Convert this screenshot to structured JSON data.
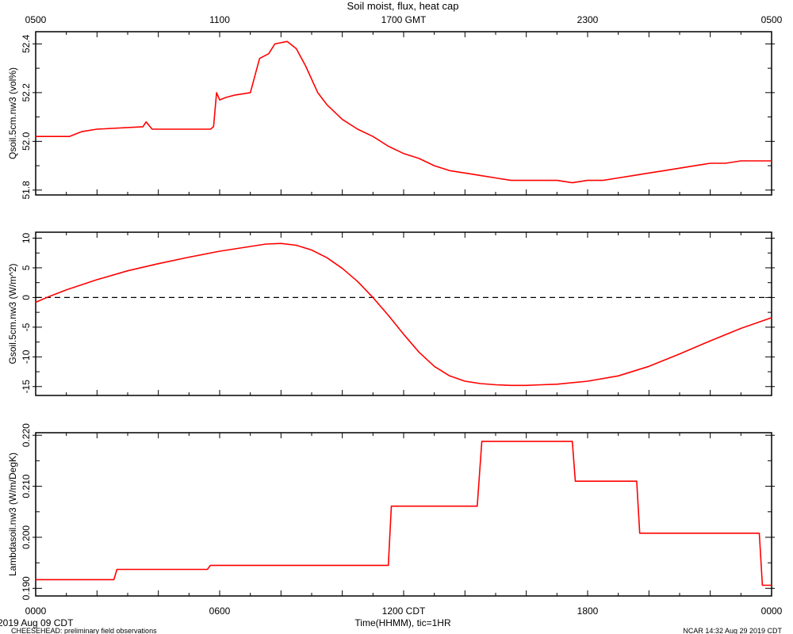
{
  "title": "Soil moist, flux, heat cap",
  "top_axis_ticks": [
    "0500",
    "1100",
    "1700 GMT",
    "2300",
    "0500"
  ],
  "bottom_axis_ticks": [
    "0000",
    "0600",
    "1200 CDT",
    "1800",
    "0000"
  ],
  "xlabel": "Time(HHMM), tic=1HR",
  "start_date": "2019 Aug 09 CDT",
  "footer_left": "CHEESEHEAD: preliminary field observations",
  "footer_right": "NCAR 14:32 Aug 29 2019 CDT",
  "line_color": "#ff0000",
  "chart_data": [
    {
      "type": "line",
      "ylabel": "Qsoil.5cm.nw3 (vol%)",
      "ylim": [
        51.78,
        52.45
      ],
      "yticks": [
        51.8,
        52.0,
        52.2,
        52.4
      ],
      "yticklabels": [
        "51.8",
        "52.0",
        "52.2",
        "52.4"
      ],
      "zero_line": false,
      "x_hours": [
        0,
        1.1,
        1.3,
        1.5,
        2.0,
        3.5,
        3.6,
        3.8,
        5.7,
        5.8,
        5.9,
        6.0,
        6.2,
        6.5,
        7.0,
        7.3,
        7.6,
        7.8,
        8.2,
        8.5,
        8.8,
        9.2,
        9.5,
        10.0,
        10.5,
        11.0,
        11.5,
        12.0,
        12.5,
        13.0,
        13.5,
        14.0,
        14.5,
        15.0,
        15.5,
        16.0,
        16.5,
        17.0,
        17.5,
        18.0,
        18.5,
        19.0,
        19.5,
        20.0,
        20.5,
        21.0,
        21.5,
        22.0,
        22.5,
        23.0,
        23.5,
        24.0
      ],
      "values": [
        52.02,
        52.02,
        52.03,
        52.04,
        52.05,
        52.06,
        52.08,
        52.05,
        52.05,
        52.06,
        52.2,
        52.17,
        52.18,
        52.19,
        52.2,
        52.34,
        52.36,
        52.4,
        52.41,
        52.38,
        52.31,
        52.2,
        52.15,
        52.09,
        52.05,
        52.02,
        51.98,
        51.95,
        51.93,
        51.9,
        51.88,
        51.87,
        51.86,
        51.85,
        51.84,
        51.84,
        51.84,
        51.84,
        51.83,
        51.84,
        51.84,
        51.85,
        51.86,
        51.87,
        51.88,
        51.89,
        51.9,
        51.91,
        51.91,
        51.92,
        51.92,
        51.92
      ]
    },
    {
      "type": "line",
      "ylabel": "Gsoil.5cm.nw3 (W/m^2)",
      "ylim": [
        -16.5,
        11
      ],
      "yticks": [
        -15,
        -10,
        -5,
        0,
        5,
        10
      ],
      "yticklabels": [
        "-15",
        "-10",
        "-5",
        "0",
        "5",
        "10"
      ],
      "zero_line": true,
      "x_hours": [
        0,
        0.5,
        1,
        2,
        3,
        4,
        5,
        6,
        7,
        7.5,
        8,
        8.5,
        9,
        9.5,
        10,
        10.5,
        11,
        11.5,
        12,
        12.5,
        13,
        13.5,
        14,
        14.5,
        15,
        15.5,
        16,
        16.5,
        17,
        18,
        19,
        20,
        21,
        22,
        23,
        24
      ],
      "values": [
        -0.8,
        0.3,
        1.3,
        3.0,
        4.5,
        5.7,
        6.8,
        7.8,
        8.6,
        9.0,
        9.1,
        8.8,
        8.0,
        6.7,
        4.9,
        2.7,
        0.0,
        -3.0,
        -6.2,
        -9.2,
        -11.6,
        -13.2,
        -14.1,
        -14.5,
        -14.7,
        -14.8,
        -14.8,
        -14.7,
        -14.6,
        -14.1,
        -13.2,
        -11.6,
        -9.5,
        -7.3,
        -5.2,
        -3.4
      ]
    },
    {
      "type": "line",
      "ylabel": "Lambdasoil.nw3 (W/m/DegK)",
      "ylim": [
        0.1885,
        0.2205
      ],
      "yticks": [
        0.19,
        0.2,
        0.21,
        0.22
      ],
      "yticklabels": [
        "0.190",
        "0.200",
        "0.210",
        "0.220"
      ],
      "zero_line": false,
      "x_hours": [
        0,
        2.55,
        2.65,
        5.6,
        5.7,
        11.5,
        11.6,
        14.4,
        14.55,
        17.5,
        17.6,
        19.6,
        19.7,
        23.6,
        23.7,
        24
      ],
      "values": [
        0.1917,
        0.1917,
        0.1937,
        0.1937,
        0.1945,
        0.1945,
        0.2061,
        0.2061,
        0.2188,
        0.2188,
        0.211,
        0.211,
        0.2008,
        0.2008,
        0.1906,
        0.1906
      ]
    }
  ]
}
